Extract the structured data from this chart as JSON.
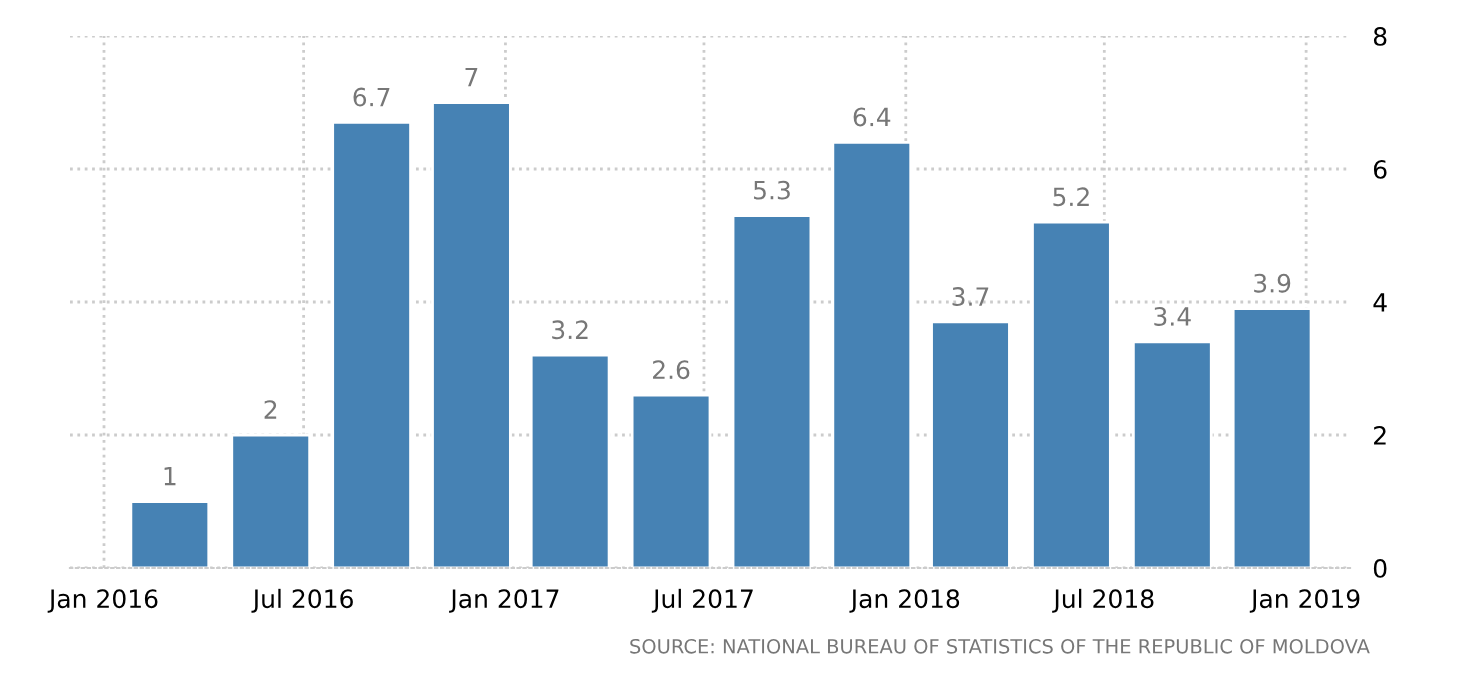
{
  "chart_data": {
    "type": "bar",
    "x": [
      "2016-03-01",
      "2016-06-01",
      "2016-09-01",
      "2016-12-01",
      "2017-03-01",
      "2017-06-01",
      "2017-09-01",
      "2017-12-01",
      "2018-03-01",
      "2018-06-01",
      "2018-09-01",
      "2018-12-01"
    ],
    "values": [
      1,
      2,
      6.7,
      7,
      3.2,
      2.6,
      5.3,
      6.4,
      3.7,
      5.2,
      3.4,
      3.9
    ],
    "color": "#4682b4",
    "data_labels": true,
    "xlim": [
      "2015-12-01",
      "2019-02-10"
    ],
    "xticks": [
      {
        "value": "2016-01-01",
        "label": "Jan 2016"
      },
      {
        "value": "2016-07-01",
        "label": "Jul 2016"
      },
      {
        "value": "2017-01-01",
        "label": "Jan 2017"
      },
      {
        "value": "2017-07-01",
        "label": "Jul 2017"
      },
      {
        "value": "2018-01-01",
        "label": "Jan 2018"
      },
      {
        "value": "2018-07-01",
        "label": "Jul 2018"
      },
      {
        "value": "2019-01-01",
        "label": "Jan 2019"
      }
    ],
    "ylim": [
      0,
      8
    ],
    "yticks": [
      0,
      2,
      4,
      6,
      8
    ],
    "grid": true,
    "annotations": [
      "SOURCE: NATIONAL BUREAU OF STATISTICS OF THE REPUBLIC OF MOLDOVA"
    ]
  }
}
